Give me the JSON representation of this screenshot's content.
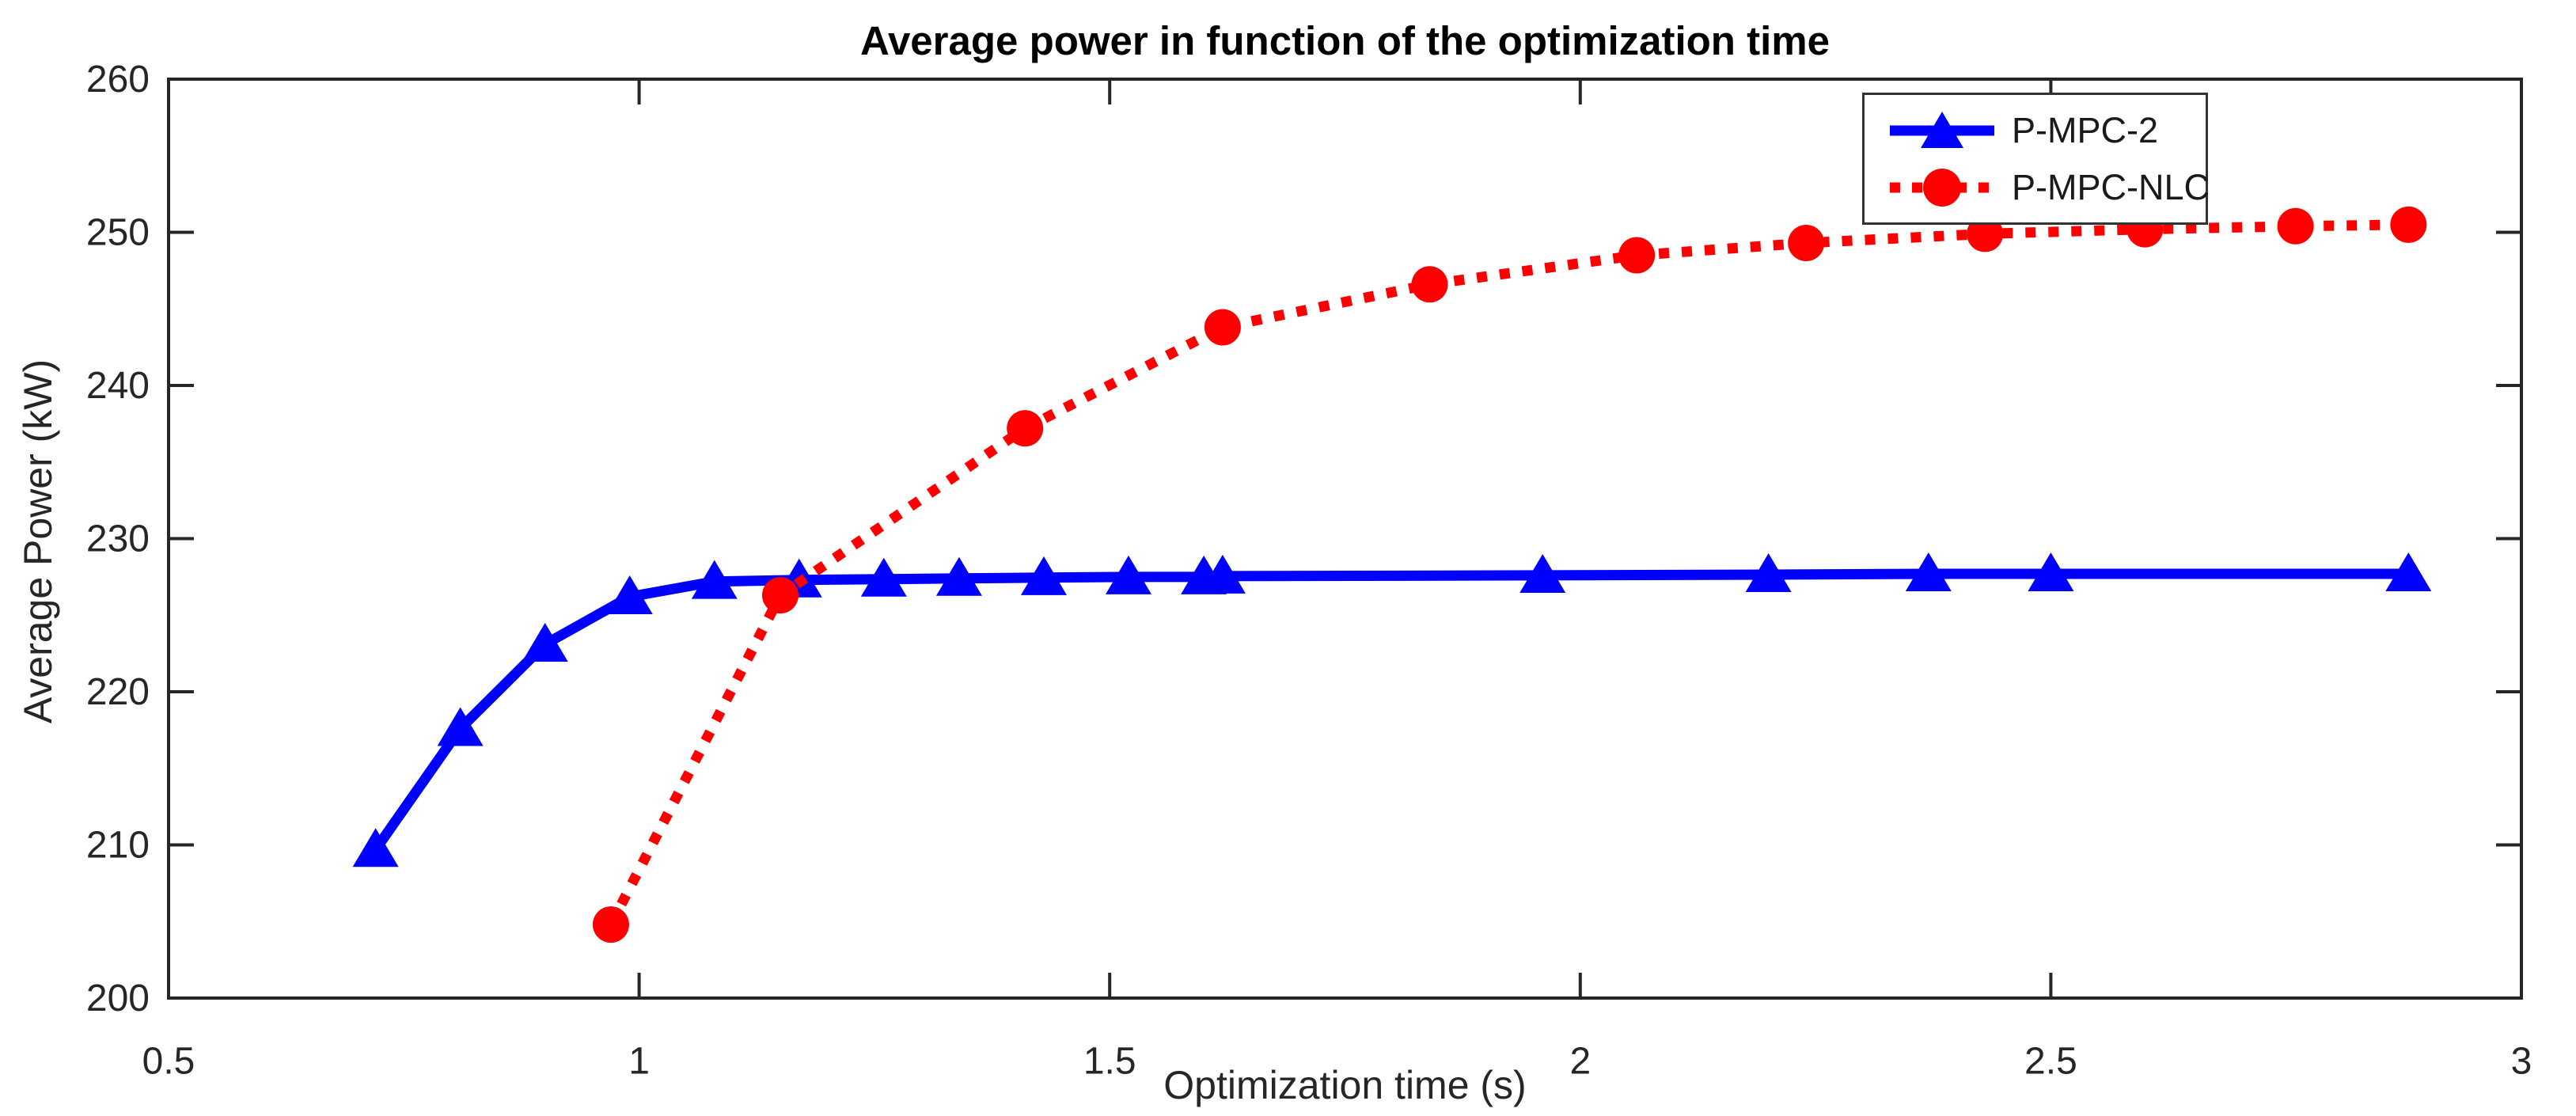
{
  "title": "Average power in function of the optimization time",
  "axes": {
    "xlabel": "Optimization time (s)",
    "ylabel": "Average Power (kW)",
    "xlim": [
      0.5,
      3
    ],
    "ylim": [
      200,
      260
    ],
    "xticks": [
      0.5,
      1,
      1.5,
      2,
      2.5,
      3
    ],
    "xtick_labels": [
      "0.5",
      "1",
      "1.5",
      "2",
      "2.5",
      "3"
    ],
    "yticks": [
      200,
      210,
      220,
      230,
      240,
      250,
      260
    ],
    "ytick_labels": [
      "200",
      "210",
      "220",
      "230",
      "240",
      "250",
      "260"
    ]
  },
  "colors": {
    "series1": "#0000FF",
    "series2": "#FF0000",
    "axis": "#262626",
    "title": "#000000"
  },
  "legend": {
    "position": "top-right",
    "entries": [
      {
        "label": "P-MPC-2",
        "color": "#0000FF",
        "line_style": "solid",
        "marker": "triangle-up"
      },
      {
        "label": "P-MPC-NLC",
        "color": "#FF0000",
        "line_style": "dotted",
        "marker": "circle"
      }
    ]
  },
  "chart_data": {
    "type": "line",
    "title": "Average power in function of the optimization time",
    "xlabel": "Optimization time (s)",
    "ylabel": "Average Power (kW)",
    "xlim": [
      0.5,
      3
    ],
    "ylim": [
      200,
      260
    ],
    "grid": false,
    "legend_position": "top-right",
    "series": [
      {
        "name": "P-MPC-2",
        "color": "#0000FF",
        "line_style": "solid",
        "marker": "triangle-up",
        "points": [
          [
            0.72,
            209.7
          ],
          [
            0.81,
            217.6
          ],
          [
            0.9,
            223.1
          ],
          [
            0.99,
            226.2
          ],
          [
            1.08,
            227.2
          ],
          [
            1.17,
            227.3
          ],
          [
            1.26,
            227.35
          ],
          [
            1.34,
            227.4
          ],
          [
            1.43,
            227.45
          ],
          [
            1.52,
            227.5
          ],
          [
            1.6,
            227.5
          ],
          [
            1.62,
            227.55
          ],
          [
            1.96,
            227.6
          ],
          [
            2.2,
            227.65
          ],
          [
            2.37,
            227.7
          ],
          [
            2.5,
            227.7
          ],
          [
            2.88,
            227.7
          ]
        ]
      },
      {
        "name": "P-MPC-NLC",
        "color": "#FF0000",
        "line_style": "dotted",
        "marker": "circle",
        "points": [
          [
            0.97,
            204.8
          ],
          [
            1.15,
            226.3
          ],
          [
            1.41,
            237.2
          ],
          [
            1.62,
            243.8
          ],
          [
            1.84,
            246.6
          ],
          [
            2.06,
            248.5
          ],
          [
            2.24,
            249.3
          ],
          [
            2.43,
            249.9
          ],
          [
            2.6,
            250.2
          ],
          [
            2.76,
            250.4
          ],
          [
            2.88,
            250.5
          ]
        ]
      }
    ]
  }
}
